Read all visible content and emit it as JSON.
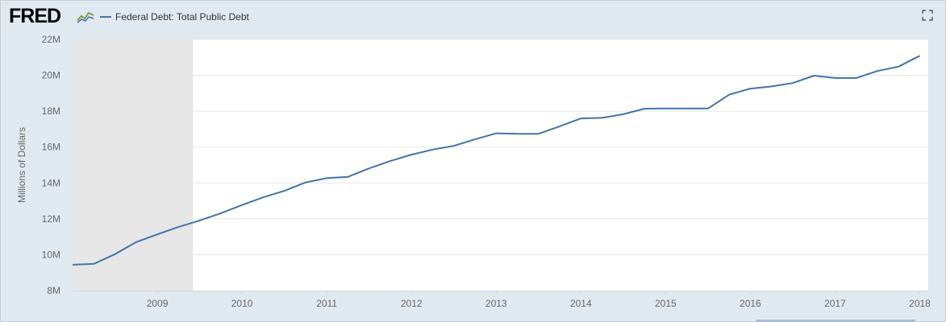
{
  "header": {
    "logo_text": "FRED",
    "logo_icon": "fred-chart-icon",
    "fullscreen_icon": "fullscreen-icon"
  },
  "colors": {
    "series": "#4572a7",
    "recession_band": "#e6e6e6",
    "plot_bg": "#ffffff",
    "frame_bg": "#e1e9f0",
    "grid": "#e6e6e6"
  },
  "chart_data": {
    "type": "line",
    "title": "",
    "ylabel": "Millions of Dollars",
    "xlabel": "",
    "ylim": [
      8,
      22
    ],
    "xlim": [
      2008.0,
      2018.1
    ],
    "y_ticks": [
      8,
      10,
      12,
      14,
      16,
      18,
      20,
      22
    ],
    "y_tick_labels": [
      "8M",
      "10M",
      "12M",
      "14M",
      "16M",
      "18M",
      "20M",
      "22M"
    ],
    "x_ticks": [
      2009,
      2010,
      2011,
      2012,
      2013,
      2014,
      2015,
      2016,
      2017,
      2018
    ],
    "x_tick_labels": [
      "2009",
      "2010",
      "2011",
      "2012",
      "2013",
      "2014",
      "2015",
      "2016",
      "2017",
      "2018"
    ],
    "grid": true,
    "legend_position": "top-left",
    "recession": {
      "start": 2008.0,
      "end": 2009.42
    },
    "series": [
      {
        "name": "Federal Debt: Total Public Debt",
        "x": [
          2008.0,
          2008.25,
          2008.5,
          2008.75,
          2009.0,
          2009.25,
          2009.5,
          2009.75,
          2010.0,
          2010.25,
          2010.5,
          2010.75,
          2011.0,
          2011.25,
          2011.5,
          2011.75,
          2012.0,
          2012.25,
          2012.5,
          2012.75,
          2013.0,
          2013.25,
          2013.5,
          2013.75,
          2014.0,
          2014.25,
          2014.5,
          2014.75,
          2015.0,
          2015.25,
          2015.5,
          2015.75,
          2016.0,
          2016.25,
          2016.5,
          2016.75,
          2017.0,
          2017.25,
          2017.5,
          2017.75,
          2018.0
        ],
        "values": [
          9.44,
          9.49,
          10.03,
          10.7,
          11.13,
          11.55,
          11.91,
          12.31,
          12.77,
          13.2,
          13.56,
          14.03,
          14.27,
          14.34,
          14.81,
          15.22,
          15.58,
          15.86,
          16.07,
          16.43,
          16.77,
          16.74,
          16.74,
          17.16,
          17.6,
          17.63,
          17.83,
          18.14,
          18.15,
          18.15,
          18.15,
          18.92,
          19.26,
          19.38,
          19.57,
          19.98,
          19.85,
          19.85,
          20.24,
          20.49,
          21.09
        ]
      }
    ]
  }
}
